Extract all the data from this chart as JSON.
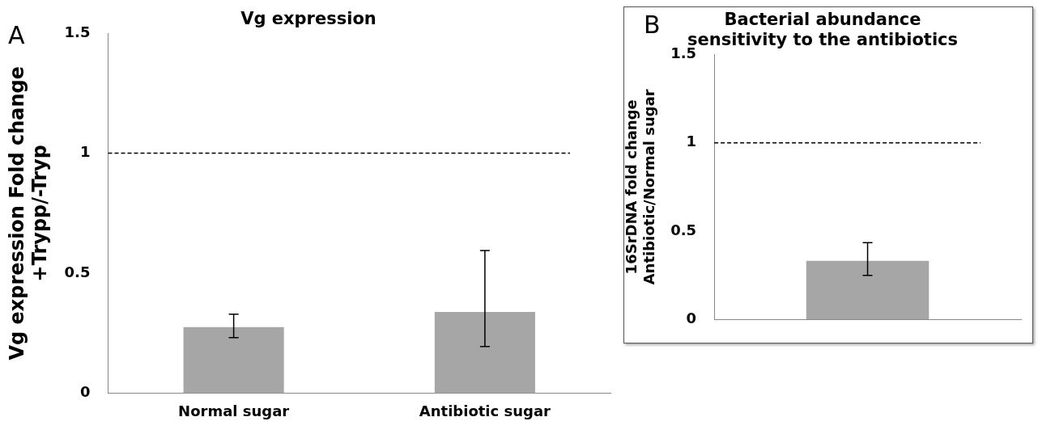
{
  "chart_data": [
    {
      "type": "bar",
      "title": "Vg expression",
      "ylabel": "Vg expression Fold change\n+Trypp/-Tryp",
      "annotations": [
        "A"
      ],
      "categories": [
        "Normal sugar",
        "Antibiotic sugar"
      ],
      "values": [
        0.275,
        0.338
      ],
      "errors": [
        [
          0.231,
          0.329
        ],
        [
          0.194,
          0.594
        ]
      ],
      "color": "#a6a6a6",
      "ylim": [
        0,
        1.5
      ],
      "yticks": [
        0,
        0.5,
        1,
        1.5
      ],
      "grid": false,
      "legend": false,
      "ref_lines": [
        {
          "axis": "y",
          "value": 1,
          "color": "#000000",
          "line_style": "dashed"
        }
      ]
    },
    {
      "type": "bar",
      "title": "Bacterial abundance\nsensitivity to the antibiotics",
      "ylabel": "16SrDNA fold change\nAntibiotic/Normal sugar",
      "annotations": [
        "B"
      ],
      "categories": [
        null
      ],
      "values": [
        0.331
      ],
      "errors": [
        [
          0.249,
          0.435
        ]
      ],
      "color": "#a6a6a6",
      "ylim": [
        0,
        1.5
      ],
      "yticks": [
        0,
        0.5,
        1,
        1.5
      ],
      "tick_labels": "y",
      "grid": false,
      "legend": false,
      "ref_lines": [
        {
          "axis": "y",
          "value": 1,
          "color": "#000000",
          "line_style": "dashed"
        }
      ]
    }
  ]
}
